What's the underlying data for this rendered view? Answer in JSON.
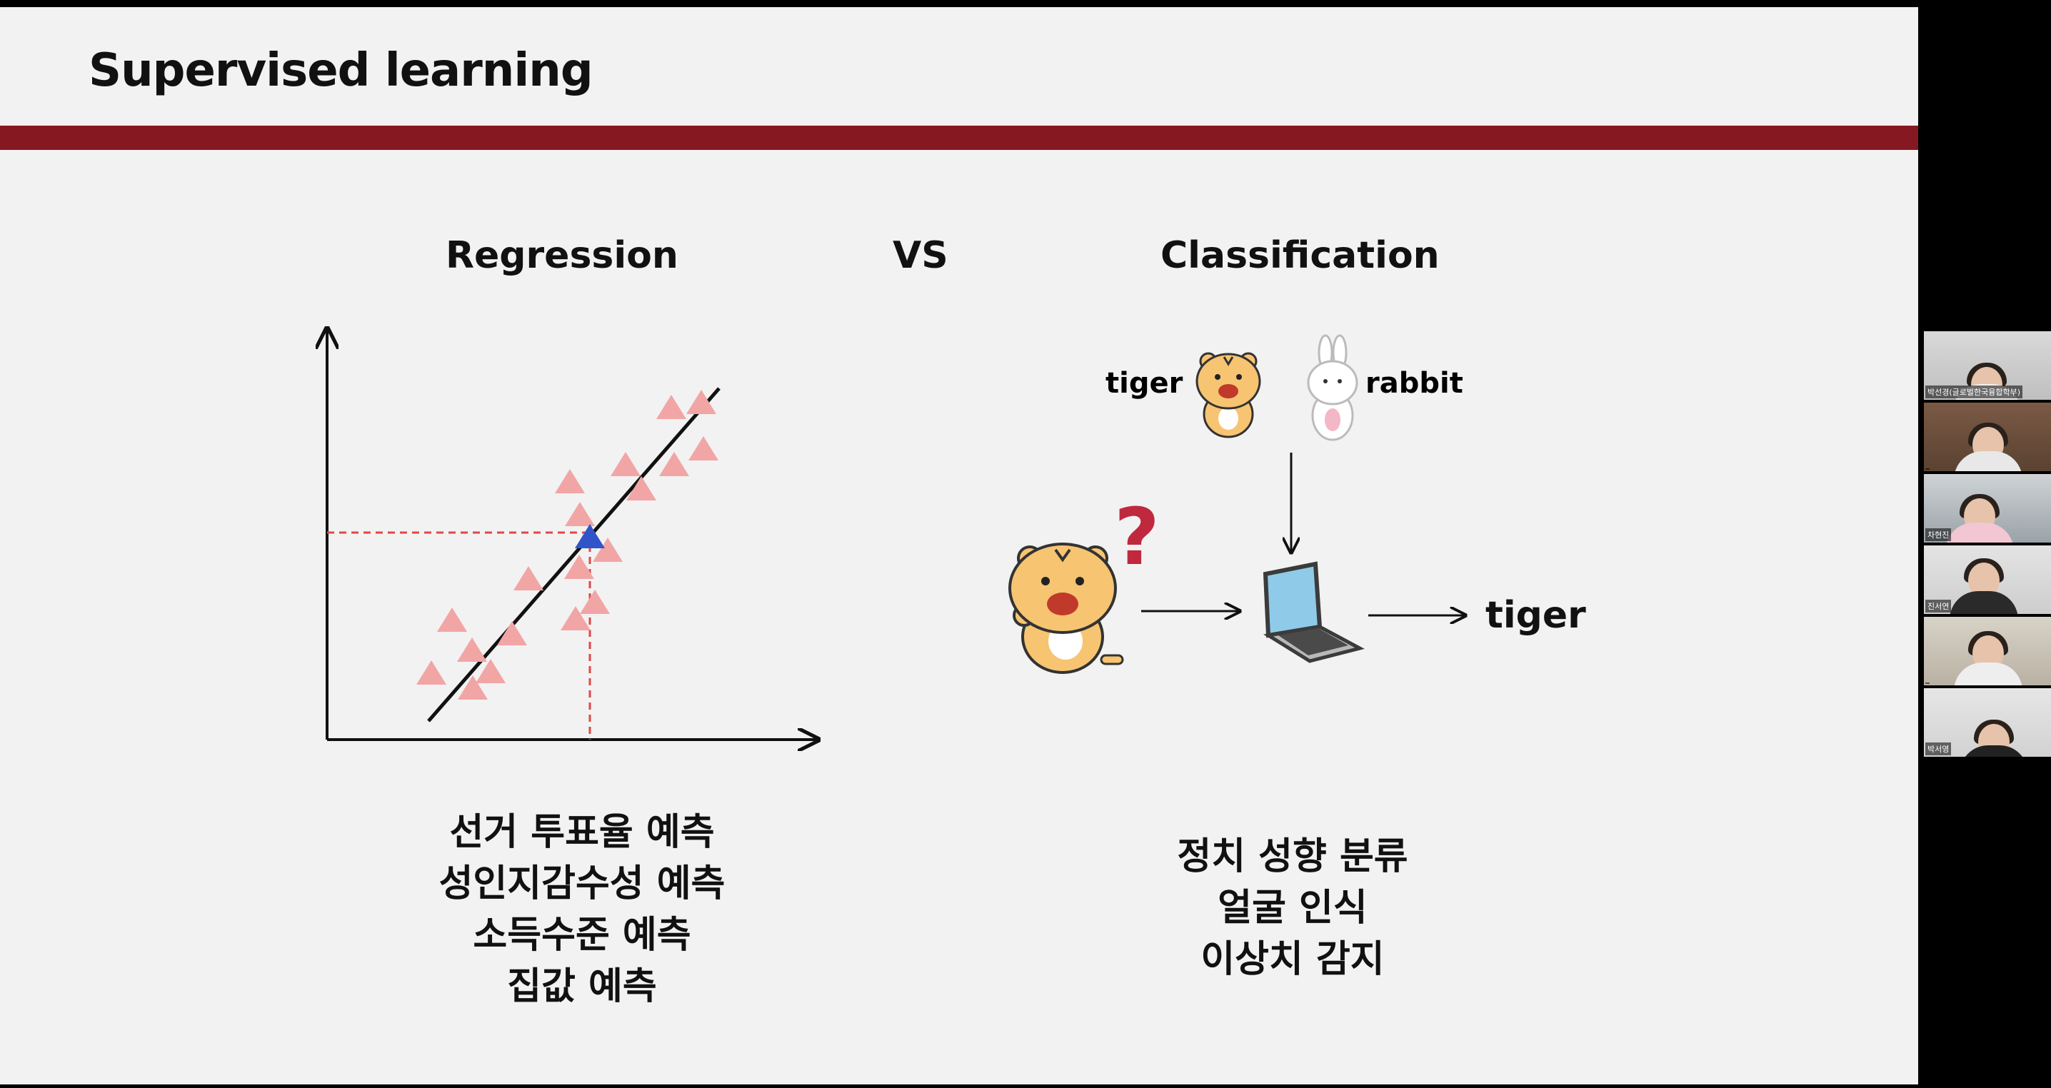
{
  "slide": {
    "title": "Supervised learning",
    "accent_color": "#861821"
  },
  "regression": {
    "heading": "Regression",
    "examples": [
      "선거 투표율 예측",
      "성인지감수성 예측",
      "소득수준 예측",
      "집값 예측"
    ],
    "point_color": "#f2a5a5",
    "highlight_color": "#2f55c8"
  },
  "vs_label": "VS",
  "classification": {
    "heading": "Classification",
    "class_labels": {
      "tiger": "tiger",
      "rabbit": "rabbit"
    },
    "question_mark": "?",
    "output_label": "tiger",
    "examples": [
      "정치 성향 분류",
      "얼굴 인식",
      "이상치 감지"
    ]
  },
  "participants": [
    {
      "name": "박선경(글로벌한국융합학부)"
    },
    {
      "name": ""
    },
    {
      "name": "차현진"
    },
    {
      "name": "진서연"
    },
    {
      "name": ""
    },
    {
      "name": "박서영"
    }
  ]
}
